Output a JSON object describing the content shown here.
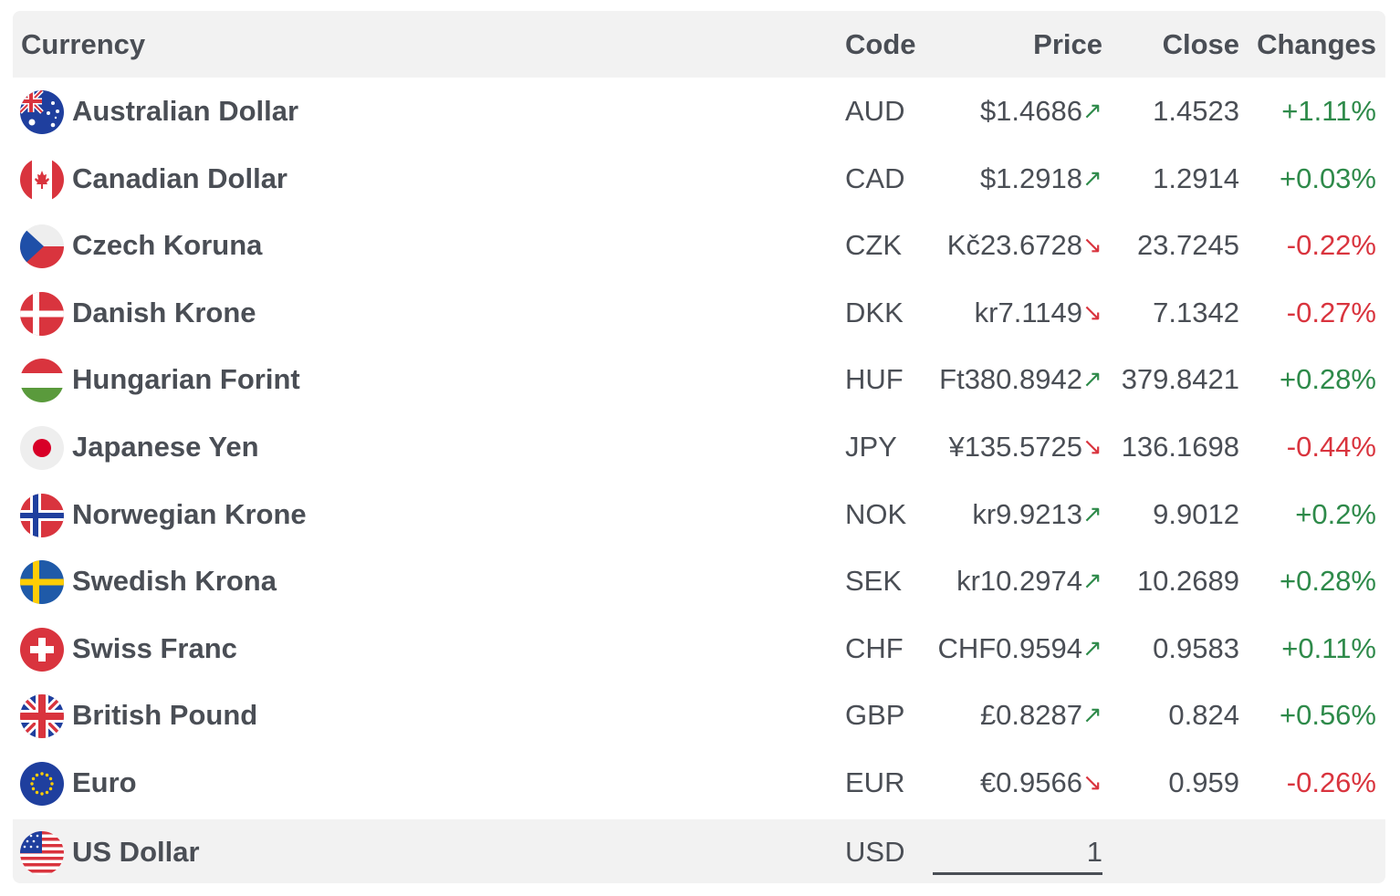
{
  "header": {
    "currency": "Currency",
    "code": "Code",
    "price": "Price",
    "close": "Close",
    "changes": "Changes"
  },
  "colors": {
    "up": "#2e8a4a",
    "down": "#d9343e",
    "text": "#4a4e55",
    "header_bg": "#f2f2f2"
  },
  "rows": [
    {
      "name": "Australian Dollar",
      "code": "AUD",
      "price": "$1.4686",
      "close": "1.4523",
      "change": "+1.11%",
      "direction": "up",
      "flag": "australia-flag-icon"
    },
    {
      "name": "Canadian Dollar",
      "code": "CAD",
      "price": "$1.2918",
      "close": "1.2914",
      "change": "+0.03%",
      "direction": "up",
      "flag": "canada-flag-icon"
    },
    {
      "name": "Czech Koruna",
      "code": "CZK",
      "price": "Kč23.6728",
      "close": "23.7245",
      "change": "-0.22%",
      "direction": "down",
      "flag": "czech-flag-icon"
    },
    {
      "name": "Danish Krone",
      "code": "DKK",
      "price": "kr7.1149",
      "close": "7.1342",
      "change": "-0.27%",
      "direction": "down",
      "flag": "denmark-flag-icon"
    },
    {
      "name": "Hungarian Forint",
      "code": "HUF",
      "price": "Ft380.8942",
      "close": "379.8421",
      "change": "+0.28%",
      "direction": "up",
      "flag": "hungary-flag-icon"
    },
    {
      "name": "Japanese Yen",
      "code": "JPY",
      "price": "¥135.5725",
      "close": "136.1698",
      "change": "-0.44%",
      "direction": "down",
      "flag": "japan-flag-icon"
    },
    {
      "name": "Norwegian Krone",
      "code": "NOK",
      "price": "kr9.9213",
      "close": "9.9012",
      "change": "+0.2%",
      "direction": "up",
      "flag": "norway-flag-icon"
    },
    {
      "name": "Swedish Krona",
      "code": "SEK",
      "price": "kr10.2974",
      "close": "10.2689",
      "change": "+0.28%",
      "direction": "up",
      "flag": "sweden-flag-icon"
    },
    {
      "name": "Swiss Franc",
      "code": "CHF",
      "price": "CHF0.9594",
      "close": "0.9583",
      "change": "+0.11%",
      "direction": "up",
      "flag": "switzerland-flag-icon"
    },
    {
      "name": "British Pound",
      "code": "GBP",
      "price": "£0.8287",
      "close": "0.824",
      "change": "+0.56%",
      "direction": "up",
      "flag": "uk-flag-icon"
    },
    {
      "name": "Euro",
      "code": "EUR",
      "price": "€0.9566",
      "close": "0.959",
      "change": "-0.26%",
      "direction": "down",
      "flag": "eu-flag-icon"
    }
  ],
  "base": {
    "name": "US Dollar",
    "code": "USD",
    "amount": "1",
    "flag": "us-flag-icon"
  }
}
